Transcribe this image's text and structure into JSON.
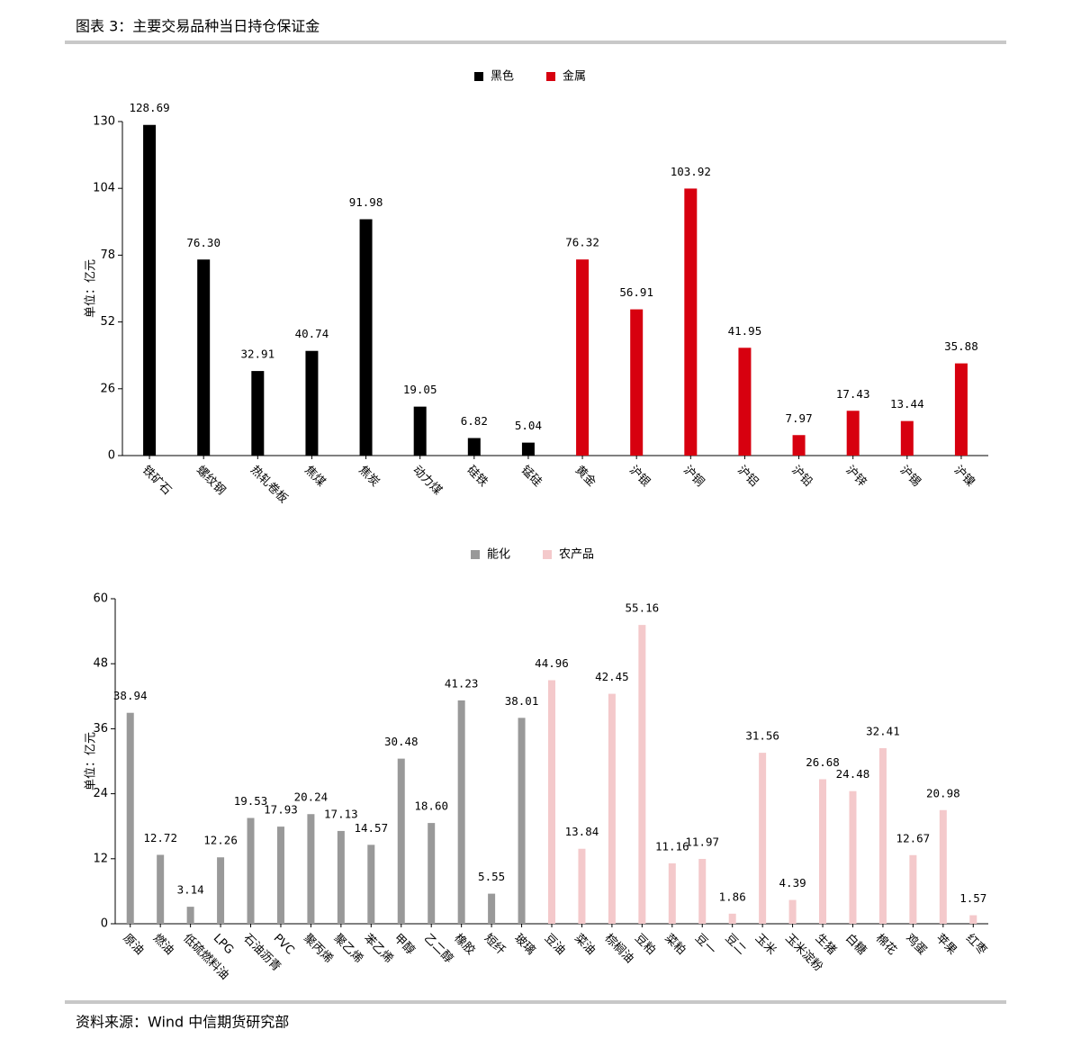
{
  "figure_title": "图表 3：主要交易品种当日持仓保证金",
  "source": "资料来源：Wind 中信期货研究部",
  "chart_data": [
    {
      "type": "bar",
      "y_label": "单位：亿元",
      "categories": [
        "铁矿石",
        "螺纹钢",
        "热轧卷板",
        "焦煤",
        "焦炭",
        "动力煤",
        "硅铁",
        "锰硅",
        "黄金",
        "沪银",
        "沪铜",
        "沪铝",
        "沪铅",
        "沪锌",
        "沪锡",
        "沪镍"
      ],
      "series": [
        {
          "name": "黑色",
          "color": "#000000",
          "values": [
            128.69,
            76.3,
            32.91,
            40.74,
            91.98,
            19.05,
            6.82,
            5.04,
            null,
            null,
            null,
            null,
            null,
            null,
            null,
            null
          ],
          "value_labels": [
            "128.69",
            "76.30",
            "32.91",
            "40.74",
            "91.98",
            "19.05",
            "6.82",
            "5.04",
            null,
            null,
            null,
            null,
            null,
            null,
            null,
            null
          ]
        },
        {
          "name": "金属",
          "color": "#d7000f",
          "values": [
            null,
            null,
            null,
            null,
            null,
            null,
            null,
            null,
            76.32,
            56.91,
            103.92,
            41.95,
            7.97,
            17.43,
            13.44,
            35.88
          ],
          "value_labels": [
            null,
            null,
            null,
            null,
            null,
            null,
            null,
            null,
            "76.32",
            "56.91",
            "103.92",
            "41.95",
            "7.97",
            "17.43",
            "13.44",
            "35.88"
          ]
        }
      ],
      "ylim": [
        0,
        130
      ],
      "yticks": [
        0,
        26,
        52,
        78,
        104,
        130
      ]
    },
    {
      "type": "bar",
      "y_label": "单位：亿元",
      "categories": [
        "原油",
        "燃油",
        "低硫燃料油",
        "LPG",
        "石油沥青",
        "PVC",
        "聚丙烯",
        "聚乙烯",
        "苯乙烯",
        "甲醇",
        "乙二醇",
        "橡胶",
        "短纤",
        "玻璃",
        "豆油",
        "菜油",
        "棕榈油",
        "豆粕",
        "菜粕",
        "豆一",
        "豆二",
        "玉米",
        "玉米淀粉",
        "生猪",
        "白糖",
        "棉花",
        "鸡蛋",
        "苹果",
        "红枣"
      ],
      "series": [
        {
          "name": "能化",
          "color": "#999999",
          "values": [
            38.94,
            12.72,
            3.14,
            12.26,
            19.53,
            17.93,
            20.24,
            17.13,
            14.57,
            30.48,
            18.6,
            41.23,
            5.55,
            38.01,
            null,
            null,
            null,
            null,
            null,
            null,
            null,
            null,
            null,
            null,
            null,
            null,
            null,
            null,
            null
          ],
          "value_labels": [
            "38.94",
            "12.72",
            "3.14",
            "12.26",
            "19.53",
            "17.93",
            "20.24",
            "17.13",
            "14.57",
            "30.48",
            "18.60",
            "41.23",
            "5.55",
            "38.01",
            null,
            null,
            null,
            null,
            null,
            null,
            null,
            null,
            null,
            null,
            null,
            null,
            null,
            null,
            null
          ]
        },
        {
          "name": "农产品",
          "color": "#f4c9cb",
          "values": [
            null,
            null,
            null,
            null,
            null,
            null,
            null,
            null,
            null,
            null,
            null,
            null,
            null,
            null,
            44.96,
            13.84,
            42.45,
            55.16,
            11.16,
            11.97,
            1.86,
            31.56,
            4.39,
            26.68,
            24.48,
            32.41,
            12.67,
            20.98,
            1.57
          ],
          "value_labels": [
            null,
            null,
            null,
            null,
            null,
            null,
            null,
            null,
            null,
            null,
            null,
            null,
            null,
            null,
            "44.96",
            "13.84",
            "42.45",
            "55.16",
            "11.16",
            "11.97",
            "1.86",
            "31.56",
            "4.39",
            "26.68",
            "24.48",
            "32.41",
            "12.67",
            "20.98",
            "1.57"
          ]
        }
      ],
      "ylim": [
        0,
        60
      ],
      "yticks": [
        0,
        12,
        24,
        36,
        48,
        60
      ]
    }
  ]
}
